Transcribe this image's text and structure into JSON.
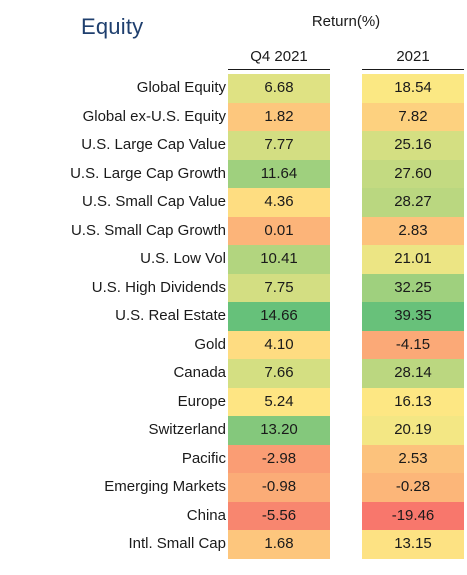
{
  "title": "Equity",
  "header": {
    "group": "Return(%)",
    "col_q4": "Q4 2021",
    "col_yr": "2021"
  },
  "chart_data": {
    "type": "table",
    "title": "Equity",
    "columns": [
      "Q4 2021",
      "2021"
    ],
    "rows": [
      {
        "label": "Global Equity",
        "q4": "6.68",
        "yr": "18.54",
        "q4_color": "#dfe283",
        "yr_color": "#fbe883"
      },
      {
        "label": "Global ex-U.S. Equity",
        "q4": "1.82",
        "yr": "7.82",
        "q4_color": "#fdc77d",
        "yr_color": "#fdd17f"
      },
      {
        "label": "U.S. Large Cap Value",
        "q4": "7.77",
        "yr": "25.16",
        "q4_color": "#d3de82",
        "yr_color": "#d4df82"
      },
      {
        "label": "U.S. Large Cap Growth",
        "q4": "11.64",
        "yr": "27.60",
        "q4_color": "#9fd07e",
        "yr_color": "#c3da81"
      },
      {
        "label": "U.S. Small Cap Value",
        "q4": "4.36",
        "yr": "28.27",
        "q4_color": "#fedd81",
        "yr_color": "#bad780"
      },
      {
        "label": "U.S. Small Cap Growth",
        "q4": "0.01",
        "yr": "2.83",
        "q4_color": "#fcb479",
        "yr_color": "#fdc27c"
      },
      {
        "label": "U.S. Low Vol",
        "q4": "10.41",
        "yr": "21.01",
        "q4_color": "#b2d57f",
        "yr_color": "#ece584"
      },
      {
        "label": "U.S. High Dividends",
        "q4": "7.75",
        "yr": "32.25",
        "q4_color": "#d3de82",
        "yr_color": "#9fd07e"
      },
      {
        "label": "U.S. Real Estate",
        "q4": "14.66",
        "yr": "39.35",
        "q4_color": "#66c17a",
        "yr_color": "#68c17a"
      },
      {
        "label": "Gold",
        "q4": "4.10",
        "yr": "-4.15",
        "q4_color": "#fedc81",
        "yr_color": "#fba977"
      },
      {
        "label": "Canada",
        "q4": "7.66",
        "yr": "28.14",
        "q4_color": "#d4df82",
        "yr_color": "#bbd780"
      },
      {
        "label": "Europe",
        "q4": "5.24",
        "yr": "16.13",
        "q4_color": "#fee583",
        "yr_color": "#fde783"
      },
      {
        "label": "Switzerland",
        "q4": "13.20",
        "yr": "20.19",
        "q4_color": "#84c87c",
        "yr_color": "#f3e784"
      },
      {
        "label": "Pacific",
        "q4": "-2.98",
        "yr": "2.53",
        "q4_color": "#fa9d74",
        "yr_color": "#fcc27c"
      },
      {
        "label": "Emerging Markets",
        "q4": "-0.98",
        "yr": "-0.28",
        "q4_color": "#fbac77",
        "yr_color": "#fcb679"
      },
      {
        "label": "China",
        "q4": "-5.56",
        "yr": "-19.46",
        "q4_color": "#f8866f",
        "yr_color": "#f8776c"
      },
      {
        "label": "Intl. Small Cap",
        "q4": "1.68",
        "yr": "13.15",
        "q4_color": "#fdc67d",
        "yr_color": "#fde283"
      }
    ]
  }
}
